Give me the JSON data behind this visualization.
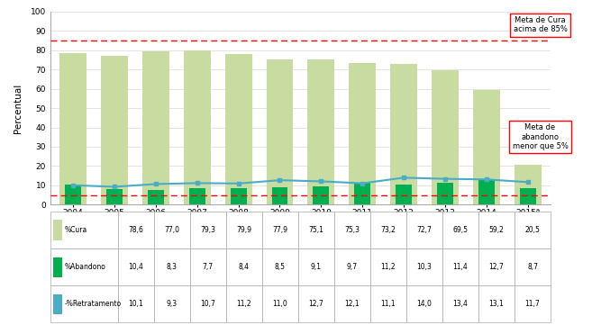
{
  "years": [
    "2004",
    "2005",
    "2006",
    "2007",
    "2008",
    "2009",
    "2010",
    "2011",
    "2012",
    "2013",
    "2014",
    "2015ª"
  ],
  "cura": [
    78.6,
    77.0,
    79.3,
    79.9,
    77.9,
    75.1,
    75.3,
    73.2,
    72.7,
    69.5,
    59.2,
    20.5
  ],
  "abandono": [
    10.4,
    8.3,
    7.7,
    8.4,
    8.5,
    9.1,
    9.7,
    11.2,
    10.3,
    11.4,
    12.7,
    8.7
  ],
  "retratamento": [
    10.1,
    9.3,
    10.7,
    11.2,
    11.0,
    12.7,
    12.1,
    11.1,
    14.0,
    13.4,
    13.1,
    11.7
  ],
  "bar_color_cura": "#c8dba0",
  "bar_color_abandono": "#00b050",
  "line_color_retratamento": "#4bacc6",
  "line_marker_color": "#17375e",
  "dashed_line_cura": 85,
  "dashed_line_abandono": 5,
  "dashed_color": "#ff0000",
  "ylabel": "Percentual",
  "ylim": [
    0,
    100
  ],
  "yticks": [
    0,
    10,
    20,
    30,
    40,
    50,
    60,
    70,
    80,
    90,
    100
  ],
  "annotation_cura": "Meta de Cura\nacima de 85%",
  "annotation_abandono": "Meta de\nabandono\nmenor que 5%",
  "legend_cura": "%Cura",
  "legend_abandono": "%Abandono",
  "legend_retratamento": "-%Retratamento",
  "table_row_cura": [
    "78,6",
    "77,0",
    "79,3",
    "79,9",
    "77,9",
    "75,1",
    "75,3",
    "73,2",
    "72,7",
    "69,5",
    "59,2",
    "20,5"
  ],
  "table_row_abandono": [
    "10,4",
    "8,3",
    "7,7",
    "8,4",
    "8,5",
    "9,1",
    "9,7",
    "11,2",
    "10,3",
    "11,4",
    "12,7",
    "8,7"
  ],
  "table_row_retratamento": [
    "10,1",
    "9,3",
    "10,7",
    "11,2",
    "11,0",
    "12,7",
    "12,1",
    "11,1",
    "14,0",
    "13,4",
    "13,1",
    "11,7"
  ],
  "bg_color": "#ffffff",
  "grid_color": "#d9d9d9",
  "spine_color": "#aaaaaa"
}
